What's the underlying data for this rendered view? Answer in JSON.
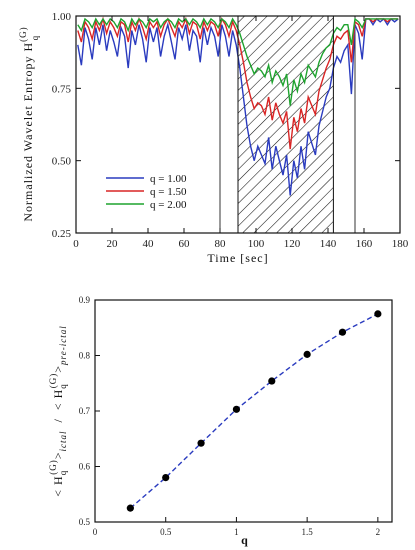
{
  "chart_data": [
    {
      "type": "line",
      "xlabel": "Time [sec]",
      "ylabel": "Normalized Wavelet Entropy H_q^(G)",
      "ylabel_main": "Normalized Wavelet Entropy H",
      "ylabel_sup": "(G)",
      "ylabel_sub": "q",
      "xlim": [
        0,
        180
      ],
      "ylim": [
        0.25,
        1.0
      ],
      "xticks": [
        "0",
        "20",
        "40",
        "60",
        "80",
        "100",
        "120",
        "140",
        "160",
        "180"
      ],
      "yticks": [
        "0.25",
        "0.50",
        "0.75",
        "1.00"
      ],
      "vlines": [
        80,
        155
      ],
      "shaded_region": [
        90,
        143
      ],
      "legend_position": "lower-left",
      "series": [
        {
          "name": "q = 1.00",
          "color": "#2a3bbf",
          "x": [
            1,
            3,
            5,
            7,
            9,
            11,
            13,
            15,
            17,
            19,
            21,
            23,
            25,
            27,
            29,
            31,
            33,
            35,
            37,
            39,
            41,
            43,
            45,
            47,
            49,
            51,
            53,
            55,
            57,
            59,
            61,
            63,
            65,
            67,
            69,
            71,
            73,
            75,
            77,
            79,
            81,
            83,
            85,
            87,
            89,
            91,
            93,
            95,
            97,
            99,
            101,
            103,
            105,
            107,
            109,
            111,
            113,
            115,
            117,
            119,
            121,
            123,
            125,
            127,
            129,
            131,
            133,
            135,
            137,
            139,
            141,
            143,
            145,
            147,
            149,
            151,
            153,
            155,
            157,
            159,
            161,
            163,
            165,
            167,
            169,
            171,
            173,
            175,
            177,
            179
          ],
          "values": [
            0.9,
            0.83,
            0.96,
            0.92,
            0.85,
            0.96,
            0.9,
            0.97,
            0.88,
            0.95,
            0.91,
            0.86,
            0.96,
            0.93,
            0.82,
            0.95,
            0.9,
            0.97,
            0.92,
            0.84,
            0.96,
            0.91,
            0.96,
            0.86,
            0.93,
            0.97,
            0.91,
            0.85,
            0.96,
            0.92,
            0.97,
            0.88,
            0.95,
            0.93,
            0.84,
            0.96,
            0.9,
            0.96,
            0.93,
            0.86,
            0.97,
            0.93,
            0.86,
            0.95,
            0.9,
            0.82,
            0.72,
            0.62,
            0.55,
            0.5,
            0.55,
            0.52,
            0.49,
            0.58,
            0.47,
            0.55,
            0.5,
            0.45,
            0.52,
            0.38,
            0.5,
            0.44,
            0.55,
            0.47,
            0.6,
            0.56,
            0.52,
            0.62,
            0.67,
            0.72,
            0.75,
            0.82,
            0.86,
            0.84,
            0.88,
            0.9,
            0.73,
            0.97,
            0.94,
            0.85,
            0.99,
            0.99,
            0.97,
            0.99,
            0.98,
            0.99,
            0.97,
            0.99,
            0.98,
            0.99
          ]
        },
        {
          "name": "q = 1.50",
          "color": "#d92525",
          "x": [
            1,
            3,
            5,
            7,
            9,
            11,
            13,
            15,
            17,
            19,
            21,
            23,
            25,
            27,
            29,
            31,
            33,
            35,
            37,
            39,
            41,
            43,
            45,
            47,
            49,
            51,
            53,
            55,
            57,
            59,
            61,
            63,
            65,
            67,
            69,
            71,
            73,
            75,
            77,
            79,
            81,
            83,
            85,
            87,
            89,
            91,
            93,
            95,
            97,
            99,
            101,
            103,
            105,
            107,
            109,
            111,
            113,
            115,
            117,
            119,
            121,
            123,
            125,
            127,
            129,
            131,
            133,
            135,
            137,
            139,
            141,
            143,
            145,
            147,
            149,
            151,
            153,
            155,
            157,
            159,
            161,
            163,
            165,
            167,
            169,
            171,
            173,
            175,
            177,
            179
          ],
          "values": [
            0.95,
            0.91,
            0.98,
            0.96,
            0.92,
            0.98,
            0.95,
            0.99,
            0.94,
            0.98,
            0.96,
            0.93,
            0.98,
            0.97,
            0.91,
            0.98,
            0.95,
            0.99,
            0.96,
            0.92,
            0.98,
            0.96,
            0.98,
            0.93,
            0.97,
            0.99,
            0.96,
            0.93,
            0.98,
            0.96,
            0.99,
            0.94,
            0.98,
            0.97,
            0.92,
            0.98,
            0.95,
            0.98,
            0.97,
            0.93,
            0.99,
            0.97,
            0.93,
            0.98,
            0.95,
            0.9,
            0.84,
            0.77,
            0.72,
            0.68,
            0.7,
            0.69,
            0.66,
            0.72,
            0.64,
            0.7,
            0.66,
            0.63,
            0.67,
            0.54,
            0.65,
            0.6,
            0.68,
            0.63,
            0.72,
            0.69,
            0.66,
            0.74,
            0.78,
            0.82,
            0.85,
            0.9,
            0.93,
            0.92,
            0.94,
            0.95,
            0.84,
            0.98,
            0.97,
            0.93,
            0.99,
            0.99,
            0.98,
            0.99,
            0.99,
            0.99,
            0.98,
            0.99,
            0.99,
            0.99
          ]
        },
        {
          "name": "q = 2.00",
          "color": "#1fa32f",
          "x": [
            1,
            3,
            5,
            7,
            9,
            11,
            13,
            15,
            17,
            19,
            21,
            23,
            25,
            27,
            29,
            31,
            33,
            35,
            37,
            39,
            41,
            43,
            45,
            47,
            49,
            51,
            53,
            55,
            57,
            59,
            61,
            63,
            65,
            67,
            69,
            71,
            73,
            75,
            77,
            79,
            81,
            83,
            85,
            87,
            89,
            91,
            93,
            95,
            97,
            99,
            101,
            103,
            105,
            107,
            109,
            111,
            113,
            115,
            117,
            119,
            121,
            123,
            125,
            127,
            129,
            131,
            133,
            135,
            137,
            139,
            141,
            143,
            145,
            147,
            149,
            151,
            153,
            155,
            157,
            159,
            161,
            163,
            165,
            167,
            169,
            171,
            173,
            175,
            177,
            179
          ],
          "values": [
            0.97,
            0.95,
            0.99,
            0.98,
            0.96,
            0.99,
            0.97,
            0.99,
            0.97,
            0.99,
            0.98,
            0.96,
            0.99,
            0.98,
            0.95,
            0.99,
            0.97,
            0.99,
            0.98,
            0.96,
            0.99,
            0.98,
            0.99,
            0.96,
            0.98,
            0.99,
            0.98,
            0.96,
            0.99,
            0.98,
            0.99,
            0.97,
            0.99,
            0.98,
            0.96,
            0.99,
            0.97,
            0.99,
            0.98,
            0.96,
            0.99,
            0.98,
            0.96,
            0.99,
            0.97,
            0.94,
            0.9,
            0.86,
            0.83,
            0.8,
            0.82,
            0.81,
            0.79,
            0.83,
            0.77,
            0.81,
            0.79,
            0.76,
            0.8,
            0.69,
            0.78,
            0.74,
            0.8,
            0.77,
            0.83,
            0.81,
            0.79,
            0.84,
            0.87,
            0.89,
            0.9,
            0.94,
            0.96,
            0.95,
            0.97,
            0.97,
            0.9,
            0.99,
            0.98,
            0.96,
            0.99,
            0.99,
            0.99,
            0.99,
            0.99,
            0.99,
            0.99,
            0.99,
            0.99,
            0.99
          ]
        }
      ]
    },
    {
      "type": "scatter",
      "xlabel": "q",
      "ylabel": "< H_q^(G) >_ictal / < H_q^(G) >_pre-ictal",
      "ylabel_parts": {
        "num": "< H",
        "num_sub": "q",
        "num_sup": "(G)",
        "num_tail": ">",
        "num_sub2": "ictal",
        "slash": "/",
        "den": "< H",
        "den_sub": "q",
        "den_sup": "(G)",
        "den_tail": ">",
        "den_sub2": "pre-ictal"
      },
      "xlim": [
        0,
        2.1
      ],
      "ylim": [
        0.5,
        0.9
      ],
      "xticks": [
        "0",
        "0.5",
        "1",
        "1.5",
        "2"
      ],
      "xtick_values": [
        0,
        0.5,
        1.0,
        1.5,
        2.0
      ],
      "yticks": [
        "0.5",
        "0.6",
        "0.7",
        "0.8",
        "0.9"
      ],
      "marker_color": "#000000",
      "line_color": "#2a3bbf",
      "x": [
        0.25,
        0.5,
        0.75,
        1.0,
        1.25,
        1.5,
        1.75,
        2.0
      ],
      "values": [
        0.525,
        0.58,
        0.642,
        0.703,
        0.754,
        0.802,
        0.842,
        0.875
      ]
    }
  ]
}
